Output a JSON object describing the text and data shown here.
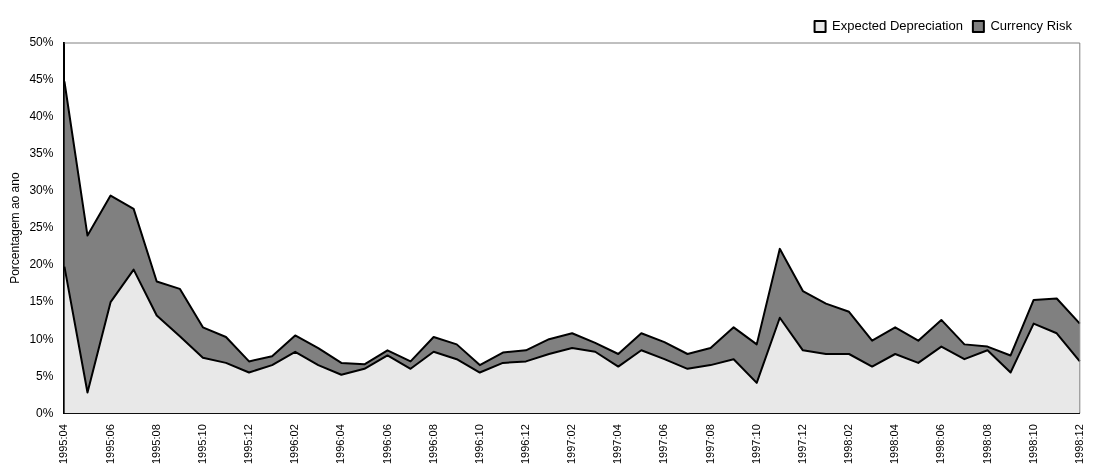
{
  "chart_data": {
    "type": "area",
    "stacked": true,
    "ylabel": "Porcentagem ao ano",
    "categories": [
      "1995:04",
      null,
      "1995:06",
      null,
      "1995:08",
      null,
      "1995:10",
      null,
      "1995:12",
      null,
      "1996:02",
      null,
      "1996:04",
      null,
      "1996:06",
      null,
      "1996:08",
      null,
      "1996:10",
      null,
      "1996:12",
      null,
      "1997:02",
      null,
      "1997:04",
      null,
      "1997:06",
      null,
      "1997:08",
      null,
      "1997:10",
      null,
      "1997:12",
      null,
      "1998:02",
      null,
      "1998:04",
      null,
      "1998:06",
      null,
      "1998:08",
      null,
      "1998:10",
      null,
      "1998:12"
    ],
    "series": [
      {
        "name": "Expected Depreciation",
        "color": "#e8e8e8",
        "values": [
          19.8,
          2.8,
          15,
          19.4,
          13.2,
          10.4,
          7.5,
          6.8,
          5.5,
          6.5,
          8.3,
          6.5,
          5.2,
          6,
          7.8,
          6,
          8.3,
          7.3,
          5.5,
          6.8,
          7,
          8,
          8.8,
          8.3,
          6.3,
          8.5,
          7.3,
          6,
          6.5,
          7.3,
          4.1,
          12.9,
          8.5,
          8,
          8,
          6.3,
          8,
          6.8,
          9,
          7.3,
          8.5,
          5.5,
          12.1,
          10.8,
          7
        ]
      },
      {
        "name": "Currency Risk",
        "color": "#808080",
        "values": [
          25,
          21.2,
          14.4,
          8.2,
          4.6,
          6.4,
          4.1,
          3.5,
          1.5,
          1.2,
          2.2,
          2.3,
          1.6,
          0.6,
          0.7,
          1,
          2,
          2,
          1,
          1.4,
          1.5,
          2,
          2,
          1.2,
          1.7,
          2.3,
          2.3,
          2,
          2.3,
          4.3,
          5.2,
          9.3,
          8,
          6.8,
          5.7,
          3.5,
          3.6,
          3,
          3.6,
          2,
          0.5,
          2.3,
          3.2,
          4.7,
          5.1
        ]
      }
    ],
    "ylim": [
      0,
      50
    ],
    "yticks": [
      {
        "value": 0,
        "label": "0%"
      },
      {
        "value": 5,
        "label": "5%"
      },
      {
        "value": 10,
        "label": "10%"
      },
      {
        "value": 15,
        "label": "15%"
      },
      {
        "value": 20,
        "label": "20%"
      },
      {
        "value": 25,
        "label": "25%"
      },
      {
        "value": 30,
        "label": "30%"
      },
      {
        "value": 35,
        "label": "35%"
      },
      {
        "value": 40,
        "label": "40%"
      },
      {
        "value": 45,
        "label": "45%"
      },
      {
        "value": 50,
        "label": "50%"
      }
    ],
    "legend": "top right",
    "grid": false,
    "marker": "none",
    "line_style": "solid"
  }
}
